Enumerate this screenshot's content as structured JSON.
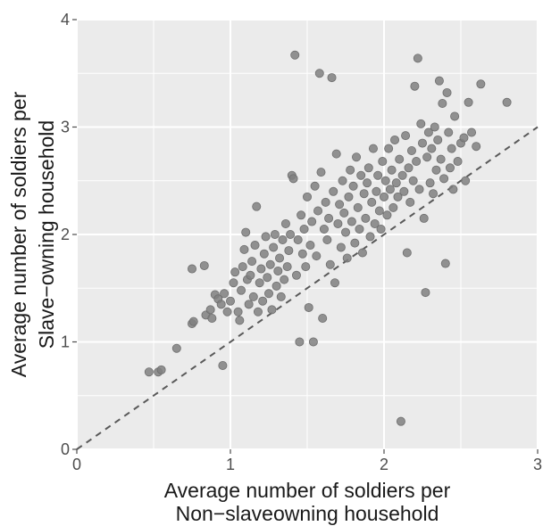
{
  "chart_data": {
    "type": "scatter",
    "title": "",
    "xlabel_lines": [
      "Average number of soldiers per",
      "Non−slaveowning household"
    ],
    "ylabel_lines": [
      "Average number of soldiers per",
      "Slave−owning household"
    ],
    "xlim": [
      0,
      3
    ],
    "ylim": [
      0,
      4
    ],
    "x_ticks": [
      0,
      1,
      2,
      3
    ],
    "y_ticks": [
      0,
      1,
      2,
      3,
      4
    ],
    "x_tick_labels": [
      "0",
      "1",
      "2",
      "3"
    ],
    "y_tick_labels": [
      "0",
      "1",
      "2",
      "3",
      "4"
    ],
    "grid": true,
    "reference_line": {
      "style": "dashed",
      "from": [
        0,
        0
      ],
      "to": [
        3,
        3
      ]
    },
    "colors": {
      "panel": "#ebebeb",
      "grid": "#ffffff",
      "point": "#808080",
      "point_edge": "#6e6e6e",
      "reference": "#595959"
    },
    "point_count_note": "",
    "points": [
      [
        0.47,
        0.72
      ],
      [
        0.53,
        0.72
      ],
      [
        0.55,
        0.74
      ],
      [
        0.65,
        0.94
      ],
      [
        0.75,
        1.17
      ],
      [
        0.76,
        1.19
      ],
      [
        0.75,
        1.68
      ],
      [
        0.83,
        1.71
      ],
      [
        0.84,
        1.25
      ],
      [
        0.87,
        1.3
      ],
      [
        0.88,
        1.22
      ],
      [
        0.9,
        1.44
      ],
      [
        0.92,
        1.4
      ],
      [
        0.94,
        1.35
      ],
      [
        0.95,
        0.78
      ],
      [
        0.96,
        1.45
      ],
      [
        0.98,
        1.28
      ],
      [
        1.0,
        1.38
      ],
      [
        1.02,
        1.55
      ],
      [
        1.03,
        1.65
      ],
      [
        1.05,
        1.28
      ],
      [
        1.06,
        1.2
      ],
      [
        1.07,
        1.48
      ],
      [
        1.08,
        1.7
      ],
      [
        1.09,
        1.86
      ],
      [
        1.1,
        2.02
      ],
      [
        1.11,
        1.58
      ],
      [
        1.12,
        1.35
      ],
      [
        1.13,
        1.62
      ],
      [
        1.14,
        1.75
      ],
      [
        1.15,
        1.42
      ],
      [
        1.16,
        1.9
      ],
      [
        1.17,
        2.26
      ],
      [
        1.18,
        1.28
      ],
      [
        1.19,
        1.55
      ],
      [
        1.2,
        1.68
      ],
      [
        1.21,
        1.38
      ],
      [
        1.22,
        1.82
      ],
      [
        1.23,
        1.98
      ],
      [
        1.24,
        1.6
      ],
      [
        1.25,
        1.45
      ],
      [
        1.26,
        1.72
      ],
      [
        1.27,
        1.3
      ],
      [
        1.28,
        1.88
      ],
      [
        1.29,
        2.0
      ],
      [
        1.3,
        1.52
      ],
      [
        1.31,
        1.66
      ],
      [
        1.32,
        1.78
      ],
      [
        1.33,
        1.42
      ],
      [
        1.34,
        1.95
      ],
      [
        1.35,
        1.58
      ],
      [
        1.36,
        2.1
      ],
      [
        1.37,
        1.7
      ],
      [
        1.38,
        1.85
      ],
      [
        1.39,
        2.0
      ],
      [
        1.4,
        2.55
      ],
      [
        1.41,
        2.52
      ],
      [
        1.42,
        3.67
      ],
      [
        1.43,
        1.62
      ],
      [
        1.44,
        1.95
      ],
      [
        1.45,
        1.0
      ],
      [
        1.46,
        2.18
      ],
      [
        1.47,
        1.82
      ],
      [
        1.48,
        2.05
      ],
      [
        1.49,
        1.7
      ],
      [
        1.5,
        2.35
      ],
      [
        1.51,
        1.32
      ],
      [
        1.52,
        1.9
      ],
      [
        1.53,
        2.12
      ],
      [
        1.54,
        1.0
      ],
      [
        1.55,
        2.45
      ],
      [
        1.56,
        1.8
      ],
      [
        1.57,
        2.22
      ],
      [
        1.58,
        3.5
      ],
      [
        1.59,
        2.58
      ],
      [
        1.6,
        1.22
      ],
      [
        1.61,
        2.05
      ],
      [
        1.62,
        2.3
      ],
      [
        1.63,
        1.95
      ],
      [
        1.64,
        2.15
      ],
      [
        1.65,
        1.72
      ],
      [
        1.66,
        3.46
      ],
      [
        1.67,
        2.4
      ],
      [
        1.68,
        1.55
      ],
      [
        1.69,
        2.75
      ],
      [
        1.7,
        2.1
      ],
      [
        1.71,
        2.28
      ],
      [
        1.72,
        1.88
      ],
      [
        1.73,
        2.5
      ],
      [
        1.74,
        2.2
      ],
      [
        1.75,
        2.02
      ],
      [
        1.76,
        1.78
      ],
      [
        1.77,
        2.35
      ],
      [
        1.78,
        2.6
      ],
      [
        1.79,
        2.12
      ],
      [
        1.8,
        2.45
      ],
      [
        1.81,
        1.92
      ],
      [
        1.82,
        2.72
      ],
      [
        1.83,
        2.25
      ],
      [
        1.84,
        2.05
      ],
      [
        1.85,
        2.55
      ],
      [
        1.86,
        1.83
      ],
      [
        1.87,
        2.38
      ],
      [
        1.88,
        2.15
      ],
      [
        1.89,
        2.48
      ],
      [
        1.9,
        2.62
      ],
      [
        1.91,
        1.98
      ],
      [
        1.92,
        2.3
      ],
      [
        1.93,
        2.8
      ],
      [
        1.94,
        2.1
      ],
      [
        1.95,
        2.4
      ],
      [
        1.96,
        2.55
      ],
      [
        1.97,
        2.22
      ],
      [
        1.98,
        2.05
      ],
      [
        1.99,
        2.68
      ],
      [
        2.0,
        2.35
      ],
      [
        2.01,
        2.5
      ],
      [
        2.02,
        2.18
      ],
      [
        2.03,
        2.8
      ],
      [
        2.04,
        2.42
      ],
      [
        2.05,
        2.6
      ],
      [
        2.06,
        2.25
      ],
      [
        2.07,
        2.88
      ],
      [
        2.08,
        2.48
      ],
      [
        2.09,
        2.35
      ],
      [
        2.1,
        2.7
      ],
      [
        2.11,
        0.26
      ],
      [
        2.12,
        2.55
      ],
      [
        2.13,
        2.4
      ],
      [
        2.14,
        2.92
      ],
      [
        2.15,
        1.83
      ],
      [
        2.16,
        2.62
      ],
      [
        2.17,
        2.3
      ],
      [
        2.18,
        2.78
      ],
      [
        2.19,
        2.5
      ],
      [
        2.2,
        3.38
      ],
      [
        2.21,
        2.68
      ],
      [
        2.22,
        3.64
      ],
      [
        2.23,
        2.42
      ],
      [
        2.24,
        3.03
      ],
      [
        2.25,
        2.85
      ],
      [
        2.26,
        2.15
      ],
      [
        2.27,
        1.46
      ],
      [
        2.28,
        2.72
      ],
      [
        2.29,
        2.95
      ],
      [
        2.3,
        2.48
      ],
      [
        2.31,
        2.8
      ],
      [
        2.32,
        2.38
      ],
      [
        2.33,
        3.0
      ],
      [
        2.34,
        2.6
      ],
      [
        2.35,
        2.88
      ],
      [
        2.36,
        3.43
      ],
      [
        2.37,
        2.7
      ],
      [
        2.38,
        3.22
      ],
      [
        2.39,
        2.52
      ],
      [
        2.4,
        1.73
      ],
      [
        2.41,
        3.32
      ],
      [
        2.42,
        2.95
      ],
      [
        2.43,
        2.62
      ],
      [
        2.44,
        2.8
      ],
      [
        2.45,
        2.42
      ],
      [
        2.46,
        3.1
      ],
      [
        2.48,
        2.68
      ],
      [
        2.5,
        2.85
      ],
      [
        2.52,
        2.9
      ],
      [
        2.53,
        2.5
      ],
      [
        2.55,
        3.23
      ],
      [
        2.57,
        2.95
      ],
      [
        2.6,
        2.82
      ],
      [
        2.63,
        3.4
      ],
      [
        2.8,
        3.23
      ]
    ]
  }
}
